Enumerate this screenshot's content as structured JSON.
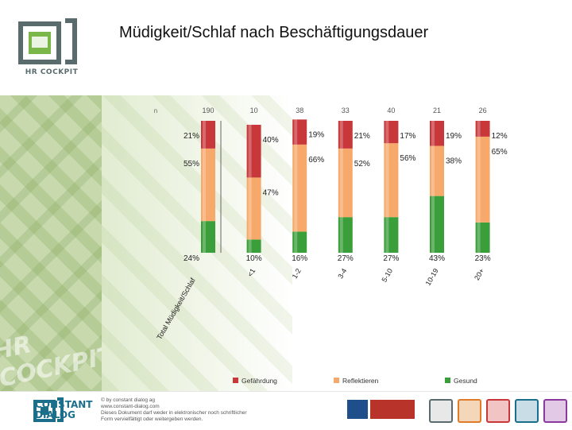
{
  "header": {
    "title": "Müdigkeit/Schlaf nach Beschäftigungsdauer"
  },
  "branding": {
    "logo_text": "HR COCKPIT",
    "watermark_text": "HR COCKPIT"
  },
  "footer": {
    "brand_line1": "CONSTANT",
    "brand_line2": "DIALOG",
    "copyright": "© by constant dialog ag",
    "website": "www.constant-dialog.com",
    "notice_line1": "Dieses Dokument darf weder in elektronischer noch schriftlicher",
    "notice_line2": "Form vervielfältigt oder weitergeben werden."
  },
  "chart_data": {
    "type": "bar",
    "stacked": true,
    "percent_stacked": true,
    "categories": [
      "Total Müdigkeit/Schlaf",
      "<1",
      "1-2",
      "3-4",
      "5-10",
      "10-19",
      "20+"
    ],
    "n_values": [
      "190",
      "10",
      "38",
      "33",
      "40",
      "21",
      "26"
    ],
    "n_first_label": "n",
    "series": [
      {
        "name": "Gesund",
        "color": "#3a9e3a",
        "values": [
          24,
          10,
          16,
          27,
          27,
          43,
          23
        ]
      },
      {
        "name": "Reflektieren",
        "color": "#f7a96b",
        "values": [
          55,
          47,
          66,
          52,
          56,
          38,
          65
        ]
      },
      {
        "name": "Gefährdung",
        "color": "#c8373a",
        "values": [
          21,
          40,
          19,
          21,
          17,
          19,
          12
        ]
      }
    ],
    "value_labels": [
      [
        "24%",
        "55%",
        "21%"
      ],
      [
        "10%",
        "47%",
        "40%"
      ],
      [
        "16%",
        "66%",
        "19%"
      ],
      [
        "27%",
        "52%",
        "21%"
      ],
      [
        "27%",
        "56%",
        "17%"
      ],
      [
        "43%",
        "38%",
        "19%"
      ],
      [
        "23%",
        "65%",
        "12%"
      ]
    ],
    "ylim": [
      0,
      100
    ],
    "legend_order": [
      "Gefährdung",
      "Reflektieren",
      "Gesund"
    ],
    "legend_position": "bottom",
    "grid": true
  }
}
